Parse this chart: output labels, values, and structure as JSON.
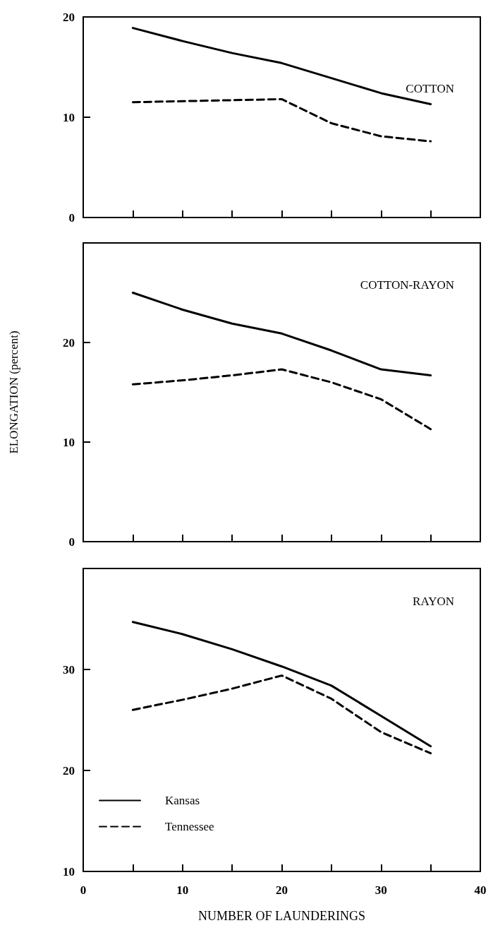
{
  "chart_data": [
    {
      "type": "line",
      "title": "COTTON",
      "x": [
        5,
        10,
        15,
        20,
        25,
        30,
        35
      ],
      "xlim": [
        0,
        40
      ],
      "xticks": [
        0,
        {
          "value": 5,
          "label": null
        },
        10,
        {
          "value": 15,
          "label": null
        },
        20,
        {
          "value": 25,
          "label": null
        },
        30,
        {
          "value": 35,
          "label": null
        },
        40
      ],
      "ylim": [
        0,
        20
      ],
      "yticks": [
        0,
        10,
        20
      ],
      "tick_labels": "y",
      "grid": false,
      "legend": false,
      "marker": "none",
      "series": [
        {
          "color": "#000000",
          "line_style": "solid",
          "values": [
            18.9,
            17.6,
            16.4,
            15.4,
            13.9,
            12.4,
            11.3
          ]
        },
        {
          "color": "#000000",
          "line_style": "dashed",
          "values": [
            11.5,
            11.6,
            11.7,
            11.8,
            9.4,
            8.1,
            7.6
          ]
        }
      ]
    },
    {
      "type": "line",
      "title": "COTTON-RAYON",
      "ylabel": "ELONGATION (percent)",
      "x": [
        5,
        10,
        15,
        20,
        25,
        30,
        35
      ],
      "xlim": [
        0,
        40
      ],
      "xticks": [
        0,
        {
          "value": 5,
          "label": null
        },
        10,
        {
          "value": 15,
          "label": null
        },
        20,
        {
          "value": 25,
          "label": null
        },
        30,
        {
          "value": 35,
          "label": null
        },
        40
      ],
      "ylim": [
        0,
        30
      ],
      "yticks": [
        0,
        10,
        20
      ],
      "tick_labels": "y",
      "grid": false,
      "legend": false,
      "marker": "none",
      "series": [
        {
          "color": "#000000",
          "line_style": "solid",
          "values": [
            25.0,
            23.3,
            21.9,
            20.9,
            19.2,
            17.3,
            16.7
          ]
        },
        {
          "color": "#000000",
          "line_style": "dashed",
          "values": [
            15.8,
            16.2,
            16.7,
            17.3,
            16.0,
            14.3,
            11.3
          ]
        }
      ]
    },
    {
      "type": "line",
      "title": "RAYON",
      "xlabel": "NUMBER OF LAUNDERINGS",
      "x": [
        5,
        10,
        15,
        20,
        25,
        30,
        35
      ],
      "xlim": [
        0,
        40
      ],
      "xticks": [
        0,
        {
          "value": 5,
          "label": null
        },
        10,
        {
          "value": 15,
          "label": null
        },
        20,
        {
          "value": 25,
          "label": null
        },
        30,
        {
          "value": 35,
          "label": null
        },
        40
      ],
      "ylim": [
        10,
        40
      ],
      "yticks": [
        10,
        20,
        30
      ],
      "grid": false,
      "legend": "bottom left",
      "marker": "none",
      "series": [
        {
          "name": "Kansas",
          "color": "#000000",
          "line_style": "solid",
          "values": [
            34.7,
            33.5,
            32.0,
            30.3,
            28.4,
            25.4,
            22.4
          ]
        },
        {
          "name": "Tennessee",
          "color": "#000000",
          "line_style": "dashed",
          "values": [
            26.0,
            27.0,
            28.1,
            29.4,
            27.1,
            23.8,
            21.7
          ]
        }
      ]
    }
  ]
}
